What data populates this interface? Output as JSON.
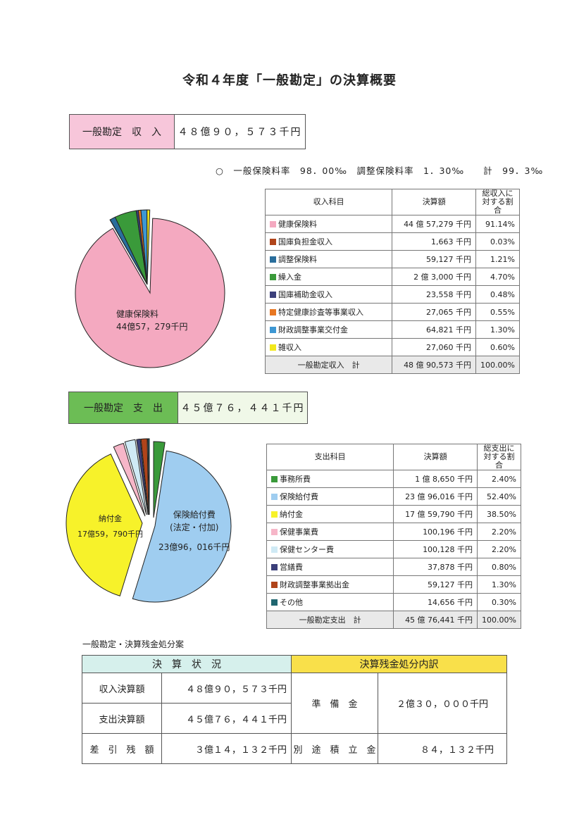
{
  "title": "令和４年度「一般勘定」の決算概要",
  "income": {
    "band_label": "一般勘定　収　入",
    "band_value": "４８億９０，５７３千円",
    "rate_note": "○　一般保険料率　98．00‰　調整保険料率　1．30‰　　計　99．3‰",
    "table_headers": [
      "収入科目",
      "決算額",
      "総収入に\n対する割合"
    ],
    "rows": [
      {
        "name": "健康保険料",
        "amount": "44 億 57,279 千円",
        "pct": "91.14%",
        "color": "#f4a9c0",
        "value": 91.14
      },
      {
        "name": "国庫負担金収入",
        "amount": "1,663 千円",
        "pct": "0.03%",
        "color": "#b0441a",
        "value": 0.03
      },
      {
        "name": "調整保険料",
        "amount": "59,127 千円",
        "pct": "1.21%",
        "color": "#2a6e9c",
        "value": 1.21
      },
      {
        "name": "繰入金",
        "amount": "2 億 3,000 千円",
        "pct": "4.70%",
        "color": "#3a9a3a",
        "value": 4.7
      },
      {
        "name": "国庫補助金収入",
        "amount": "23,558 千円",
        "pct": "0.48%",
        "color": "#3b3f7a",
        "value": 0.48
      },
      {
        "name": "特定健康診査等事業収入",
        "amount": "27,065 千円",
        "pct": "0.55%",
        "color": "#e87722",
        "value": 0.55
      },
      {
        "name": "財政調整事業交付金",
        "amount": "64,821 千円",
        "pct": "1.30%",
        "color": "#3d97d3",
        "value": 1.3
      },
      {
        "name": "雑収入",
        "amount": "27,060 千円",
        "pct": "0.60%",
        "color": "#f2e81c",
        "value": 0.6
      }
    ],
    "total": {
      "name": "一般勘定収入　計",
      "amount": "48 億 90,573 千円",
      "pct": "100.00%"
    },
    "chart_label_1": "健康保険料",
    "chart_label_2": "44億57，279千円"
  },
  "expense": {
    "band_label": "一般勘定　支　出",
    "band_value": "４５億７６，４４１千円",
    "table_headers": [
      "支出科目",
      "決算額",
      "総支出に\n対する割合"
    ],
    "rows": [
      {
        "name": "事務所費",
        "amount": "1 億 8,650 千円",
        "pct": "2.40%",
        "color": "#3a9a3a",
        "value": 2.4
      },
      {
        "name": "保険給付費",
        "amount": "23 億 96,016 千円",
        "pct": "52.40%",
        "color": "#9fcdf0",
        "value": 52.4
      },
      {
        "name": "納付金",
        "amount": "17 億 59,790 千円",
        "pct": "38.50%",
        "color": "#f7f22a",
        "value": 38.5
      },
      {
        "name": "保健事業費",
        "amount": "100,196 千円",
        "pct": "2.20%",
        "color": "#f6b6c8",
        "value": 2.2
      },
      {
        "name": "保健センター費",
        "amount": "100,128 千円",
        "pct": "2.20%",
        "color": "#cfeaf5",
        "value": 2.2
      },
      {
        "name": "営繕費",
        "amount": "37,878 千円",
        "pct": "0.80%",
        "color": "#3b3f7a",
        "value": 0.8
      },
      {
        "name": "財政調整事業拠出金",
        "amount": "59,127 千円",
        "pct": "1.30%",
        "color": "#b0441a",
        "value": 1.3
      },
      {
        "name": "その他",
        "amount": "14,656 千円",
        "pct": "0.30%",
        "color": "#1f6670",
        "value": 0.3
      }
    ],
    "total": {
      "name": "一般勘定支出　計",
      "amount": "45 億 76,441 千円",
      "pct": "100.00%"
    },
    "chart_label_a1": "保険給付費",
    "chart_label_a2": "(法定・付加)",
    "chart_label_a3": "23億96，016千円",
    "chart_label_b1": "納付金",
    "chart_label_b2": "17億59，790千円"
  },
  "distribution": {
    "caption": "一般勘定・決算残金処分案",
    "left_header": "決　算　状　況",
    "right_header": "決算残金処分内訳",
    "rows": [
      {
        "label": "収入決算額",
        "value": "４８億９０，５７３千円"
      },
      {
        "label": "支出決算額",
        "value": "４５億７６，４４１千円"
      },
      {
        "label": "差　引　残　額",
        "value": "３億１４，１３２千円"
      }
    ],
    "reserve_label": "準　備　金",
    "reserve_value": "２億３０，０００千円",
    "separate_label": "別　途　積　立　金",
    "separate_value": "８４，１３２千円"
  },
  "chart_data": [
    {
      "type": "pie",
      "categories": [
        "健康保険料",
        "国庫負担金収入",
        "調整保険料",
        "繰入金",
        "国庫補助金収入",
        "特定健康診査等事業収入",
        "財政調整事業交付金",
        "雑収入"
      ],
      "values": [
        91.14,
        0.03,
        1.21,
        4.7,
        0.48,
        0.55,
        1.3,
        0.6
      ]
    },
    {
      "type": "pie",
      "categories": [
        "事務所費",
        "保険給付費",
        "納付金",
        "保健事業費",
        "保健センター費",
        "営繕費",
        "財政調整事業拠出金",
        "その他"
      ],
      "values": [
        2.4,
        52.4,
        38.5,
        2.2,
        2.2,
        0.8,
        1.3,
        0.3
      ]
    }
  ]
}
